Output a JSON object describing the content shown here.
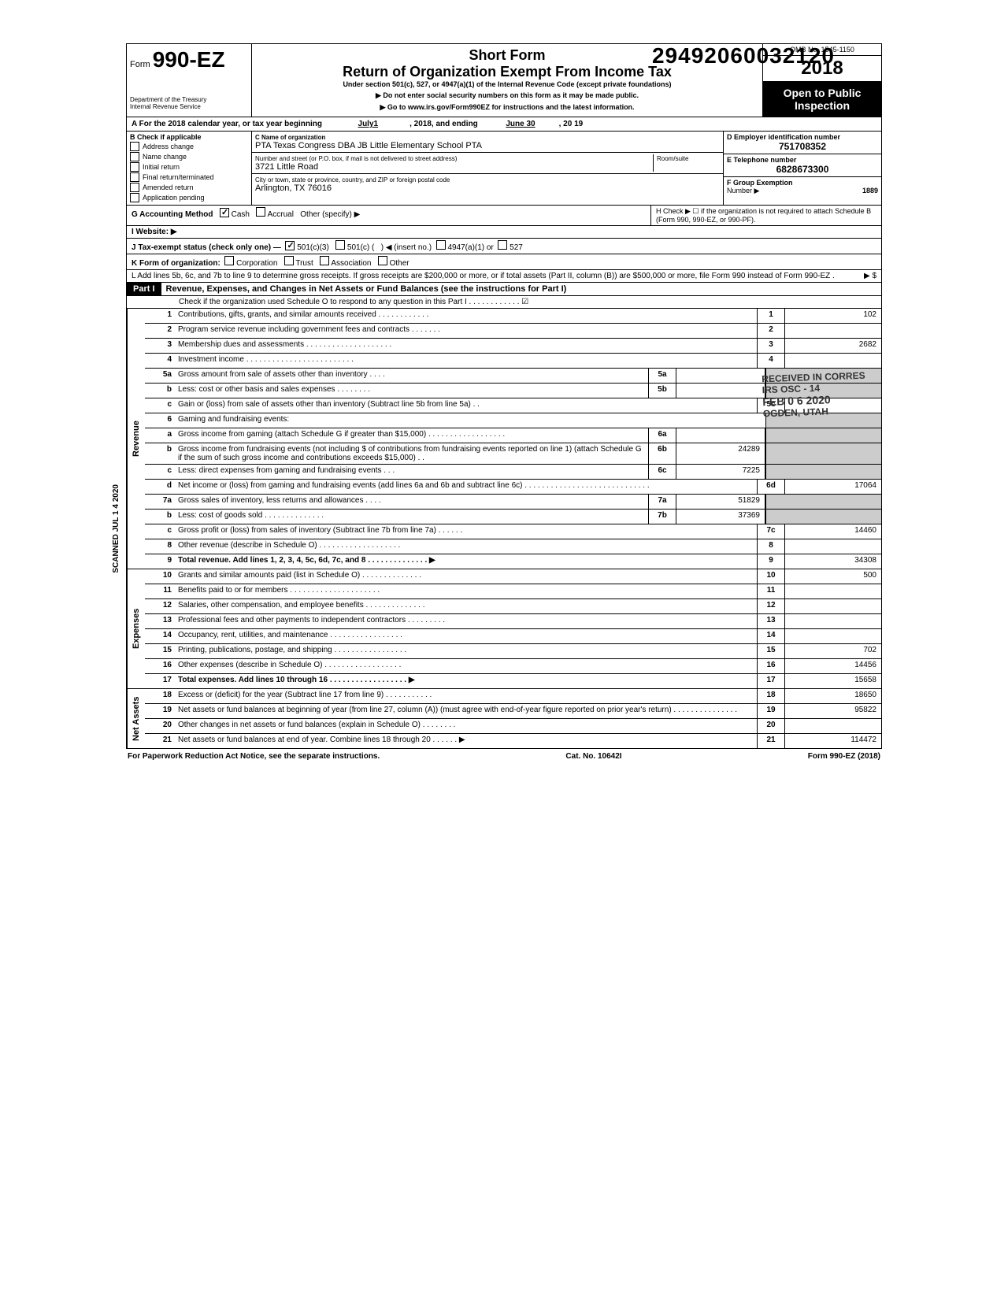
{
  "doc_id": "29492060032120",
  "omb": "OMB No. 1545-1150",
  "year": "2018",
  "form_num": "990-EZ",
  "form_word": "Form",
  "short_form": "Short Form",
  "main_title": "Return of Organization Exempt From Income Tax",
  "subtitle": "Under section 501(c), 527, or 4947(a)(1) of the Internal Revenue Code (except private foundations)",
  "instr1": "▶ Do not enter social security numbers on this form as it may be made public.",
  "instr2": "▶ Go to www.irs.gov/Form990EZ for instructions and the latest information.",
  "open_public1": "Open to Public",
  "open_public2": "Inspection",
  "dept1": "Department of the Treasury",
  "dept2": "Internal Revenue Service",
  "period_line": "A For the 2018 calendar year, or tax year beginning",
  "period_begin": "July1",
  "period_mid": ", 2018, and ending",
  "period_end": "June 30",
  "period_end2": ", 20  19",
  "b_label": "B  Check if applicable",
  "chk_addr": "Address change",
  "chk_name": "Name change",
  "chk_init": "Initial return",
  "chk_final": "Final return/terminated",
  "chk_amend": "Amended return",
  "chk_app": "Application pending",
  "c_label": "C Name of organization",
  "c_val": "PTA Texas Congress DBA JB Little Elementary School PTA",
  "street_label": "Number and street (or P.O. box, if mail is not delivered to street address)",
  "room_label": "Room/suite",
  "street_val": "3721 Little Road",
  "city_label": "City or town, state or province, country, and ZIP or foreign postal code",
  "city_val": "Arlington, TX 76016",
  "d_label": "D Employer identification number",
  "ein": "751708352",
  "e_label": "E Telephone number",
  "phone": "6828673300",
  "f_label": "F Group Exemption",
  "f_label2": "Number ▶",
  "group_num": "1889",
  "g_label": "G  Accounting Method",
  "g_cash": "Cash",
  "g_accrual": "Accrual",
  "g_other": "Other (specify) ▶",
  "h_label": "H  Check ▶ ☐ if the organization is not required to attach Schedule B (Form 990, 990-EZ, or 990-PF).",
  "i_label": "I  Website: ▶",
  "j_label": "J  Tax-exempt status (check only one) —",
  "j_501c3": "501(c)(3)",
  "j_501c": "501(c) (",
  "j_insert": ") ◀ (insert no.)",
  "j_4947": "4947(a)(1) or",
  "j_527": "527",
  "k_label": "K  Form of organization:",
  "k_corp": "Corporation",
  "k_trust": "Trust",
  "k_assoc": "Association",
  "k_other": "Other",
  "l_text": "L  Add lines 5b, 6c, and 7b to line 9 to determine gross receipts. If gross receipts are $200,000 or more, or if total assets (Part II, column (B)) are $500,000 or more, file Form 990 instead of Form 990-EZ .",
  "l_arrow": "▶  $",
  "part1_label": "Part I",
  "part1_title": "Revenue, Expenses, and Changes in Net Assets or Fund Balances (see the instructions for Part I)",
  "part1_check": "Check if the organization used Schedule O to respond to any question in this Part I . . . . . . . . . . . . ☑",
  "side_revenue": "Revenue",
  "side_expenses": "Expenses",
  "side_netassets": "Net Assets",
  "scanned": "SCANNED JUL 1 4 2020",
  "stamp_rec": "RECEIVED IN CORRES",
  "stamp_irs": "IRS  OSC - 14",
  "stamp_date": "FEB 0 6 2020",
  "stamp_loc": "OGDEN, UTAH",
  "lines": {
    "1": {
      "num": "1",
      "desc": "Contributions, gifts, grants, and similar amounts received . . . . . . . . . . . .",
      "rnum": "1",
      "rval": "102"
    },
    "2": {
      "num": "2",
      "desc": "Program service revenue including government fees and contracts  . . . . . . .",
      "rnum": "2",
      "rval": ""
    },
    "3": {
      "num": "3",
      "desc": "Membership dues and assessments . . . . . . . . . . . . . . . . . . . .",
      "rnum": "3",
      "rval": "2682"
    },
    "4": {
      "num": "4",
      "desc": "Investment income  . . . . . . . . . . . . . . . . . . . . . . . . .",
      "rnum": "4",
      "rval": ""
    },
    "5a": {
      "num": "5a",
      "desc": "Gross amount from sale of assets other than inventory  . . . .",
      "mnum": "5a",
      "mval": ""
    },
    "5b": {
      "num": "b",
      "desc": "Less: cost or other basis and sales expenses . . . . . . . .",
      "mnum": "5b",
      "mval": ""
    },
    "5c": {
      "num": "c",
      "desc": "Gain or (loss) from sale of assets other than inventory (Subtract line 5b from line 5a) . .",
      "rnum": "5c",
      "rval": ""
    },
    "6": {
      "num": "6",
      "desc": "Gaming and fundraising events:"
    },
    "6a": {
      "num": "a",
      "desc": "Gross income from gaming (attach Schedule G if greater than $15,000) . . . . . . . . . . . . . . . . . .",
      "mnum": "6a",
      "mval": ""
    },
    "6b": {
      "num": "b",
      "desc": "Gross income from fundraising events (not including  $                    of contributions from fundraising events reported on line 1) (attach Schedule G if the sum of such gross income and contributions exceeds $15,000) . .",
      "mnum": "6b",
      "mval": "24289"
    },
    "6c": {
      "num": "c",
      "desc": "Less: direct expenses from gaming and fundraising events  . . .",
      "mnum": "6c",
      "mval": "7225"
    },
    "6d": {
      "num": "d",
      "desc": "Net income or (loss) from gaming and fundraising events (add lines 6a and 6b and subtract line 6c)  . . . . . . . . . . . . . . . . . . . . . . . . . . . . .",
      "rnum": "6d",
      "rval": "17064"
    },
    "7a": {
      "num": "7a",
      "desc": "Gross sales of inventory, less returns and allowances . . . .",
      "mnum": "7a",
      "mval": "51829"
    },
    "7b": {
      "num": "b",
      "desc": "Less: cost of goods sold  . . . . . . . . . . . . . .",
      "mnum": "7b",
      "mval": "37369"
    },
    "7c": {
      "num": "c",
      "desc": "Gross profit or (loss) from sales of inventory (Subtract line 7b from line 7a) . . . . . .",
      "rnum": "7c",
      "rval": "14460"
    },
    "8": {
      "num": "8",
      "desc": "Other revenue (describe in Schedule O) . . . . . . . . . . . . . . . . . . .",
      "rnum": "8",
      "rval": ""
    },
    "9": {
      "num": "9",
      "desc": "Total revenue. Add lines 1, 2, 3, 4, 5c, 6d, 7c, and 8 . . . . . . . . . . . . . . ▶",
      "rnum": "9",
      "rval": "34308",
      "bold": true
    },
    "10": {
      "num": "10",
      "desc": "Grants and similar amounts paid (list in Schedule O) . . . . . . . . . . . . . .",
      "rnum": "10",
      "rval": "500"
    },
    "11": {
      "num": "11",
      "desc": "Benefits paid to or for members . . . . . . . . . . . . . . . . . . . . .",
      "rnum": "11",
      "rval": ""
    },
    "12": {
      "num": "12",
      "desc": "Salaries, other compensation, and employee benefits . . . . . . . . . . . . . .",
      "rnum": "12",
      "rval": ""
    },
    "13": {
      "num": "13",
      "desc": "Professional fees and other payments to independent contractors . . . . . . . . .",
      "rnum": "13",
      "rval": ""
    },
    "14": {
      "num": "14",
      "desc": "Occupancy, rent, utilities, and maintenance  . . . . . . . . . . . . . . . . .",
      "rnum": "14",
      "rval": ""
    },
    "15": {
      "num": "15",
      "desc": "Printing, publications, postage, and shipping . . . . . . . . . . . . . . . . .",
      "rnum": "15",
      "rval": "702"
    },
    "16": {
      "num": "16",
      "desc": "Other expenses (describe in Schedule O) . . . . . . . . . . . . . . . . . .",
      "rnum": "16",
      "rval": "14456"
    },
    "17": {
      "num": "17",
      "desc": "Total expenses. Add lines 10 through 16 . . . . . . . . . . . . . . . . . . ▶",
      "rnum": "17",
      "rval": "15658",
      "bold": true
    },
    "18": {
      "num": "18",
      "desc": "Excess or (deficit) for the year (Subtract line 17 from line 9)  . . . . . . . . . . .",
      "rnum": "18",
      "rval": "18650"
    },
    "19": {
      "num": "19",
      "desc": "Net assets or fund balances at beginning of year (from line 27, column (A)) (must agree with end-of-year figure reported on prior year's return)  . . . . . . . . . . . . . . .",
      "rnum": "19",
      "rval": "95822"
    },
    "20": {
      "num": "20",
      "desc": "Other changes in net assets or fund balances (explain in Schedule O) . . . . . . . .",
      "rnum": "20",
      "rval": ""
    },
    "21": {
      "num": "21",
      "desc": "Net assets or fund balances at end of year. Combine lines 18 through 20 . . . . . . ▶",
      "rnum": "21",
      "rval": "114472"
    }
  },
  "footer_left": "For Paperwork Reduction Act Notice, see the separate instructions.",
  "footer_mid": "Cat. No. 10642I",
  "footer_right": "Form 990-EZ (2018)"
}
